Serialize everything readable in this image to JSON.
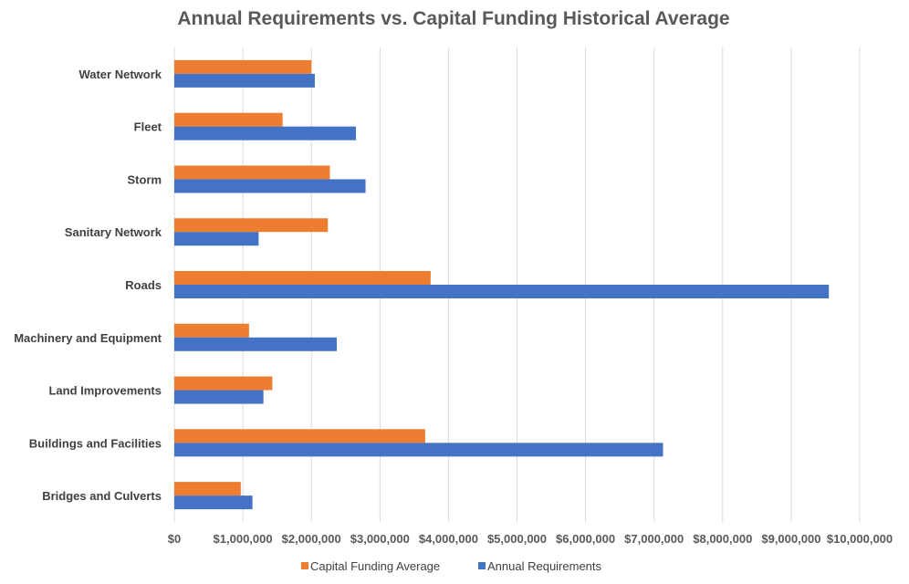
{
  "chart_data": {
    "type": "bar",
    "orientation": "horizontal",
    "title": "Annual Requirements vs. Capital Funding Historical Average",
    "categories": [
      "Water Network",
      "Fleet",
      "Storm",
      "Sanitary Network",
      "Roads",
      "Machinery and Equipment",
      "Land Improvements",
      "Buildings and Facilities",
      "Bridges and Culverts"
    ],
    "series": [
      {
        "name": "Capital Funding Average",
        "color": "#ED7D31",
        "values": [
          2000000,
          1580000,
          2270000,
          2240000,
          3740000,
          1090000,
          1430000,
          3660000,
          970000
        ]
      },
      {
        "name": "Annual Requirements",
        "color": "#4472C4",
        "values": [
          2050000,
          2650000,
          2790000,
          1230000,
          9550000,
          2370000,
          1300000,
          7130000,
          1140000
        ]
      }
    ],
    "xlim": [
      0,
      10000000
    ],
    "ticks": [
      0,
      1000000,
      2000000,
      3000000,
      4000000,
      5000000,
      6000000,
      7000000,
      8000000,
      9000000,
      10000000
    ],
    "tick_labels": [
      "$0",
      "$1,000,000",
      "$2,000,000",
      "$3,000,000",
      "$4,000,000",
      "$5,000,000",
      "$6,000,000",
      "$7,000,000",
      "$8,000,000",
      "$9,000,000",
      "$10,000,000"
    ],
    "grid": true,
    "legend": "bottom",
    "xlabel": "",
    "ylabel": ""
  }
}
